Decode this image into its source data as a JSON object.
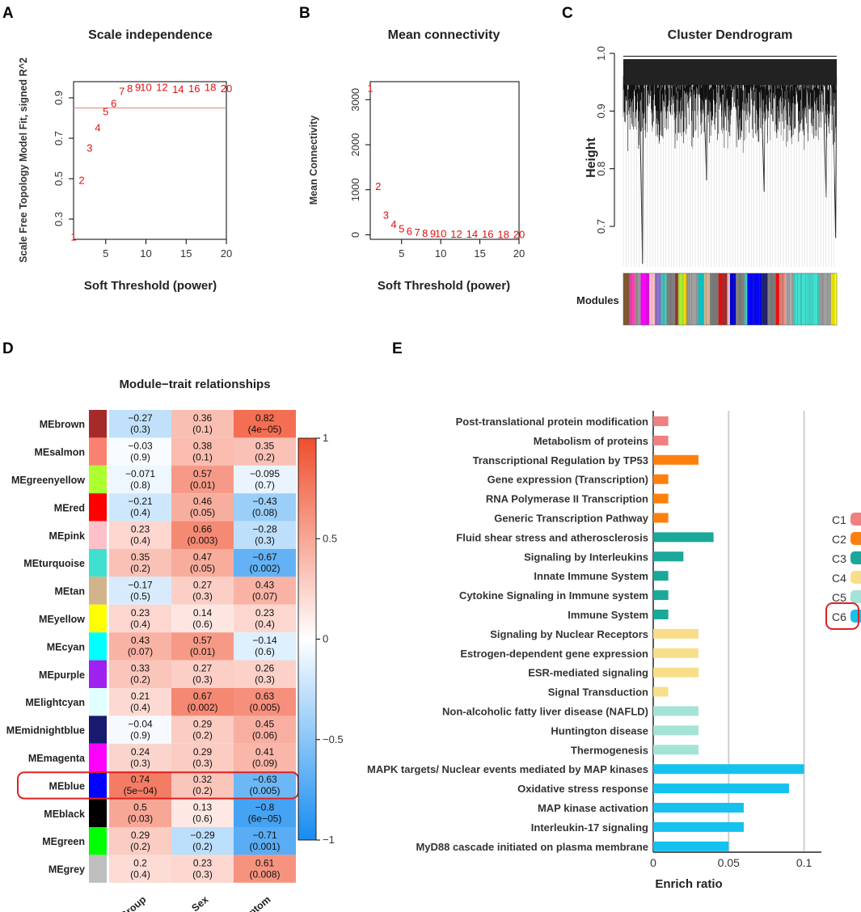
{
  "panels": {
    "A": "A",
    "B": "B",
    "C": "C",
    "D": "D",
    "E": "E"
  },
  "chart_data": [
    {
      "type": "scatter",
      "title": "Scale independence",
      "xlabel": "Soft Threshold (power)",
      "ylabel": "Scale Free Topology Model Fit, signed R^2",
      "xlim": [
        1,
        20
      ],
      "ylim": [
        0.2,
        0.98
      ],
      "xticks": [
        5,
        10,
        15,
        20
      ],
      "yticks": [
        0.3,
        0.5,
        0.7,
        0.9
      ],
      "points": [
        {
          "x": 1,
          "y": 0.21,
          "label": "1"
        },
        {
          "x": 2,
          "y": 0.49,
          "label": "2"
        },
        {
          "x": 3,
          "y": 0.65,
          "label": "3"
        },
        {
          "x": 4,
          "y": 0.75,
          "label": "4"
        },
        {
          "x": 5,
          "y": 0.83,
          "label": "5"
        },
        {
          "x": 6,
          "y": 0.87,
          "label": "6"
        },
        {
          "x": 7,
          "y": 0.93,
          "label": "7"
        },
        {
          "x": 8,
          "y": 0.945,
          "label": "8"
        },
        {
          "x": 9,
          "y": 0.95,
          "label": "9"
        },
        {
          "x": 10,
          "y": 0.95,
          "label": "10"
        },
        {
          "x": 12,
          "y": 0.95,
          "label": "12"
        },
        {
          "x": 14,
          "y": 0.94,
          "label": "14"
        },
        {
          "x": 16,
          "y": 0.945,
          "label": "16"
        },
        {
          "x": 18,
          "y": 0.95,
          "label": "18"
        },
        {
          "x": 20,
          "y": 0.945,
          "label": "20"
        }
      ],
      "hline": 0.85
    },
    {
      "type": "scatter",
      "title": "Mean connectivity",
      "xlabel": "Soft Threshold (power)",
      "ylabel": "Mean Connectivity",
      "xlim": [
        1,
        20
      ],
      "ylim": [
        -100,
        3400
      ],
      "xticks": [
        5,
        10,
        15,
        20
      ],
      "yticks": [
        0,
        1000,
        2000,
        3000
      ],
      "points": [
        {
          "x": 1,
          "y": 3250,
          "label": "1"
        },
        {
          "x": 2,
          "y": 1070,
          "label": "2"
        },
        {
          "x": 3,
          "y": 430,
          "label": "3"
        },
        {
          "x": 4,
          "y": 220,
          "label": "4"
        },
        {
          "x": 5,
          "y": 120,
          "label": "5"
        },
        {
          "x": 6,
          "y": 70,
          "label": "6"
        },
        {
          "x": 7,
          "y": 45,
          "label": "7"
        },
        {
          "x": 8,
          "y": 30,
          "label": "8"
        },
        {
          "x": 9,
          "y": 20,
          "label": "9"
        },
        {
          "x": 10,
          "y": 15,
          "label": "10"
        },
        {
          "x": 12,
          "y": 10,
          "label": "12"
        },
        {
          "x": 14,
          "y": 6,
          "label": "14"
        },
        {
          "x": 16,
          "y": 4,
          "label": "16"
        },
        {
          "x": 18,
          "y": 3,
          "label": "18"
        },
        {
          "x": 20,
          "y": 2,
          "label": "20"
        }
      ]
    },
    {
      "type": "dendrogram",
      "title": "Cluster Dendrogram",
      "ylabel": "Height",
      "ylim": [
        0.63,
        1.0
      ],
      "yticks": [
        0.7,
        0.8,
        0.9,
        1.0
      ],
      "modules_label": "Modules",
      "module_colors": [
        "#a0522d",
        "#ff1493",
        "#9aff9a",
        "#808080",
        "#ff00ff",
        "#40e0d0",
        "#a52a2a",
        "#ffd700",
        "#0000ff",
        "#191970",
        "#e0ffff",
        "#ff0000",
        "#a020f0",
        "#00ff00",
        "#d2b48c",
        "#fa8072",
        "#00ffff",
        "#adff2f",
        "#ffc0cb",
        "#000000",
        "#ffff00"
      ],
      "module_segments": [
        {
          "color": "#8b5a2b",
          "w": 2
        },
        {
          "color": "#ff3eb5",
          "w": 2
        },
        {
          "color": "#a0a0a0",
          "w": 2
        },
        {
          "color": "#ff00ff",
          "w": 3
        },
        {
          "color": "#ffc0cb",
          "w": 2
        },
        {
          "color": "#9370db",
          "w": 2
        },
        {
          "color": "#40e0d0",
          "w": 2
        },
        {
          "color": "#808080",
          "w": 3
        },
        {
          "color": "#a52a2a",
          "w": 1
        },
        {
          "color": "#adff2f",
          "w": 2
        },
        {
          "color": "#ffd700",
          "w": 1
        },
        {
          "color": "#a0a0a0",
          "w": 4
        },
        {
          "color": "#00ced1",
          "w": 2
        },
        {
          "color": "#d2b48c",
          "w": 2
        },
        {
          "color": "#808080",
          "w": 3
        },
        {
          "color": "#ff0000",
          "w": 1
        },
        {
          "color": "#a52a2a",
          "w": 2
        },
        {
          "color": "#ffc0cb",
          "w": 1
        },
        {
          "color": "#0000cd",
          "w": 2
        },
        {
          "color": "#808080",
          "w": 3
        },
        {
          "color": "#40e0d0",
          "w": 1
        },
        {
          "color": "#0000ff",
          "w": 5
        },
        {
          "color": "#191970",
          "w": 2
        },
        {
          "color": "#808080",
          "w": 3
        },
        {
          "color": "#ff0000",
          "w": 1
        },
        {
          "color": "#fa8072",
          "w": 2
        },
        {
          "color": "#b0b0b0",
          "w": 3
        },
        {
          "color": "#40e0d0",
          "w": 9
        },
        {
          "color": "#a0a0a0",
          "w": 4
        },
        {
          "color": "#ffff00",
          "w": 2
        }
      ]
    },
    {
      "type": "heatmap",
      "title": "Module−trait relationships",
      "columns": [
        "Group",
        "Sex",
        "Symptom"
      ],
      "colorbar_ticks": [
        "1",
        "0.5",
        "0",
        "−0.5",
        "−1"
      ],
      "rows": [
        {
          "name": "MEbrown",
          "color": "#a52a2a",
          "cells": [
            [
              -0.27,
              "−0.27",
              "(0.3)"
            ],
            [
              0.36,
              "0.36",
              "(0.1)"
            ],
            [
              0.82,
              "0.82",
              "(4e−05)"
            ]
          ]
        },
        {
          "name": "MEsalmon",
          "color": "#fa8072",
          "cells": [
            [
              -0.03,
              "−0.03",
              "(0.9)"
            ],
            [
              0.38,
              "0.38",
              "(0.1)"
            ],
            [
              0.35,
              "0.35",
              "(0.2)"
            ]
          ]
        },
        {
          "name": "MEgreenyellow",
          "color": "#adff2f",
          "cells": [
            [
              -0.071,
              "−0.071",
              "(0.8)"
            ],
            [
              0.57,
              "0.57",
              "(0.01)"
            ],
            [
              -0.095,
              "−0.095",
              "(0.7)"
            ]
          ]
        },
        {
          "name": "MEred",
          "color": "#ff0000",
          "cells": [
            [
              -0.21,
              "−0.21",
              "(0.4)"
            ],
            [
              0.46,
              "0.46",
              "(0.05)"
            ],
            [
              -0.43,
              "−0.43",
              "(0.08)"
            ]
          ]
        },
        {
          "name": "MEpink",
          "color": "#ffc0cb",
          "cells": [
            [
              0.23,
              "0.23",
              "(0.4)"
            ],
            [
              0.66,
              "0.66",
              "(0.003)"
            ],
            [
              -0.28,
              "−0.28",
              "(0.3)"
            ]
          ]
        },
        {
          "name": "MEturquoise",
          "color": "#40e0d0",
          "cells": [
            [
              0.35,
              "0.35",
              "(0.2)"
            ],
            [
              0.47,
              "0.47",
              "(0.05)"
            ],
            [
              -0.67,
              "−0.67",
              "(0.002)"
            ]
          ]
        },
        {
          "name": "MEtan",
          "color": "#d2b48c",
          "cells": [
            [
              -0.17,
              "−0.17",
              "(0.5)"
            ],
            [
              0.27,
              "0.27",
              "(0.3)"
            ],
            [
              0.43,
              "0.43",
              "(0.07)"
            ]
          ]
        },
        {
          "name": "MEyellow",
          "color": "#ffff00",
          "cells": [
            [
              0.23,
              "0.23",
              "(0.4)"
            ],
            [
              0.14,
              "0.14",
              "(0.6)"
            ],
            [
              0.23,
              "0.23",
              "(0.4)"
            ]
          ]
        },
        {
          "name": "MEcyan",
          "color": "#00ffff",
          "cells": [
            [
              0.43,
              "0.43",
              "(0.07)"
            ],
            [
              0.57,
              "0.57",
              "(0.01)"
            ],
            [
              -0.14,
              "−0.14",
              "(0.6)"
            ]
          ]
        },
        {
          "name": "MEpurple",
          "color": "#a020f0",
          "cells": [
            [
              0.33,
              "0.33",
              "(0.2)"
            ],
            [
              0.27,
              "0.27",
              "(0.3)"
            ],
            [
              0.26,
              "0.26",
              "(0.3)"
            ]
          ]
        },
        {
          "name": "MElightcyan",
          "color": "#e0ffff",
          "cells": [
            [
              0.21,
              "0.21",
              "(0.4)"
            ],
            [
              0.67,
              "0.67",
              "(0.002)"
            ],
            [
              0.63,
              "0.63",
              "(0.005)"
            ]
          ]
        },
        {
          "name": "MEmidnightblue",
          "color": "#191970",
          "cells": [
            [
              -0.04,
              "−0.04",
              "(0.9)"
            ],
            [
              0.29,
              "0.29",
              "(0.2)"
            ],
            [
              0.45,
              "0.45",
              "(0.06)"
            ]
          ]
        },
        {
          "name": "MEmagenta",
          "color": "#ff00ff",
          "cells": [
            [
              0.24,
              "0.24",
              "(0.3)"
            ],
            [
              0.29,
              "0.29",
              "(0.3)"
            ],
            [
              0.41,
              "0.41",
              "(0.09)"
            ]
          ]
        },
        {
          "name": "MEblue",
          "color": "#0000ff",
          "cells": [
            [
              0.74,
              "0.74",
              "(5e−04)"
            ],
            [
              0.32,
              "0.32",
              "(0.2)"
            ],
            [
              -0.63,
              "−0.63",
              "(0.005)"
            ]
          ]
        },
        {
          "name": "MEblack",
          "color": "#000000",
          "cells": [
            [
              0.5,
              "0.5",
              "(0.03)"
            ],
            [
              0.13,
              "0.13",
              "(0.6)"
            ],
            [
              -0.8,
              "−0.8",
              "(6e−05)"
            ]
          ]
        },
        {
          "name": "MEgreen",
          "color": "#00ff00",
          "cells": [
            [
              0.29,
              "0.29",
              "(0.2)"
            ],
            [
              -0.29,
              "−0.29",
              "(0.2)"
            ],
            [
              -0.71,
              "−0.71",
              "(0.001)"
            ]
          ]
        },
        {
          "name": "MEgrey",
          "color": "#bebebe",
          "cells": [
            [
              0.2,
              "0.2",
              "(0.4)"
            ],
            [
              0.23,
              "0.23",
              "(0.3)"
            ],
            [
              0.61,
              "0.61",
              "(0.008)"
            ]
          ]
        }
      ],
      "highlighted_row": "MEblue"
    },
    {
      "type": "bar",
      "orientation": "horizontal",
      "xlabel": "Enrich ratio",
      "xlim": [
        0,
        0.11
      ],
      "xticks": [
        "0",
        "0.05",
        "0.1"
      ],
      "legend": [
        {
          "name": "C1",
          "color": "#f08080"
        },
        {
          "name": "C2",
          "color": "#ff7f0e"
        },
        {
          "name": "C3",
          "color": "#1aa89a"
        },
        {
          "name": "C4",
          "color": "#f9de8a"
        },
        {
          "name": "C5",
          "color": "#a3e4d7"
        },
        {
          "name": "C6",
          "color": "#15c2ee"
        }
      ],
      "highlighted_legend": "C6",
      "bars": [
        {
          "label": "Post-translational protein modification",
          "value": 0.01,
          "group": "C1"
        },
        {
          "label": "Metabolism of proteins",
          "value": 0.01,
          "group": "C1"
        },
        {
          "label": "Transcriptional Regulation by TP53",
          "value": 0.03,
          "group": "C2"
        },
        {
          "label": "Gene expression (Transcription)",
          "value": 0.01,
          "group": "C2"
        },
        {
          "label": "RNA Polymerase II Transcription",
          "value": 0.01,
          "group": "C2"
        },
        {
          "label": "Generic Transcription Pathway",
          "value": 0.01,
          "group": "C2"
        },
        {
          "label": "Fluid shear stress and atherosclerosis",
          "value": 0.04,
          "group": "C3"
        },
        {
          "label": "Signaling by Interleukins",
          "value": 0.02,
          "group": "C3"
        },
        {
          "label": "Innate Immune System",
          "value": 0.01,
          "group": "C3"
        },
        {
          "label": "Cytokine Signaling in Immune system",
          "value": 0.01,
          "group": "C3"
        },
        {
          "label": "Immune System",
          "value": 0.01,
          "group": "C3"
        },
        {
          "label": "Signaling by Nuclear Receptors",
          "value": 0.03,
          "group": "C4"
        },
        {
          "label": "Estrogen-dependent gene expression",
          "value": 0.03,
          "group": "C4"
        },
        {
          "label": "ESR-mediated signaling",
          "value": 0.03,
          "group": "C4"
        },
        {
          "label": "Signal Transduction",
          "value": 0.01,
          "group": "C4"
        },
        {
          "label": "Non-alcoholic fatty liver disease (NAFLD)",
          "value": 0.03,
          "group": "C5"
        },
        {
          "label": "Huntington disease",
          "value": 0.03,
          "group": "C5"
        },
        {
          "label": "Thermogenesis",
          "value": 0.03,
          "group": "C5"
        },
        {
          "label": "MAPK targets/ Nuclear events mediated by MAP kinases",
          "value": 0.1,
          "group": "C6"
        },
        {
          "label": "Oxidative stress response",
          "value": 0.09,
          "group": "C6"
        },
        {
          "label": "MAP kinase activation",
          "value": 0.06,
          "group": "C6"
        },
        {
          "label": "Interleukin-17 signaling",
          "value": 0.06,
          "group": "C6"
        },
        {
          "label": "MyD88 cascade initiated on plasma membrane",
          "value": 0.05,
          "group": "C6"
        }
      ]
    }
  ]
}
